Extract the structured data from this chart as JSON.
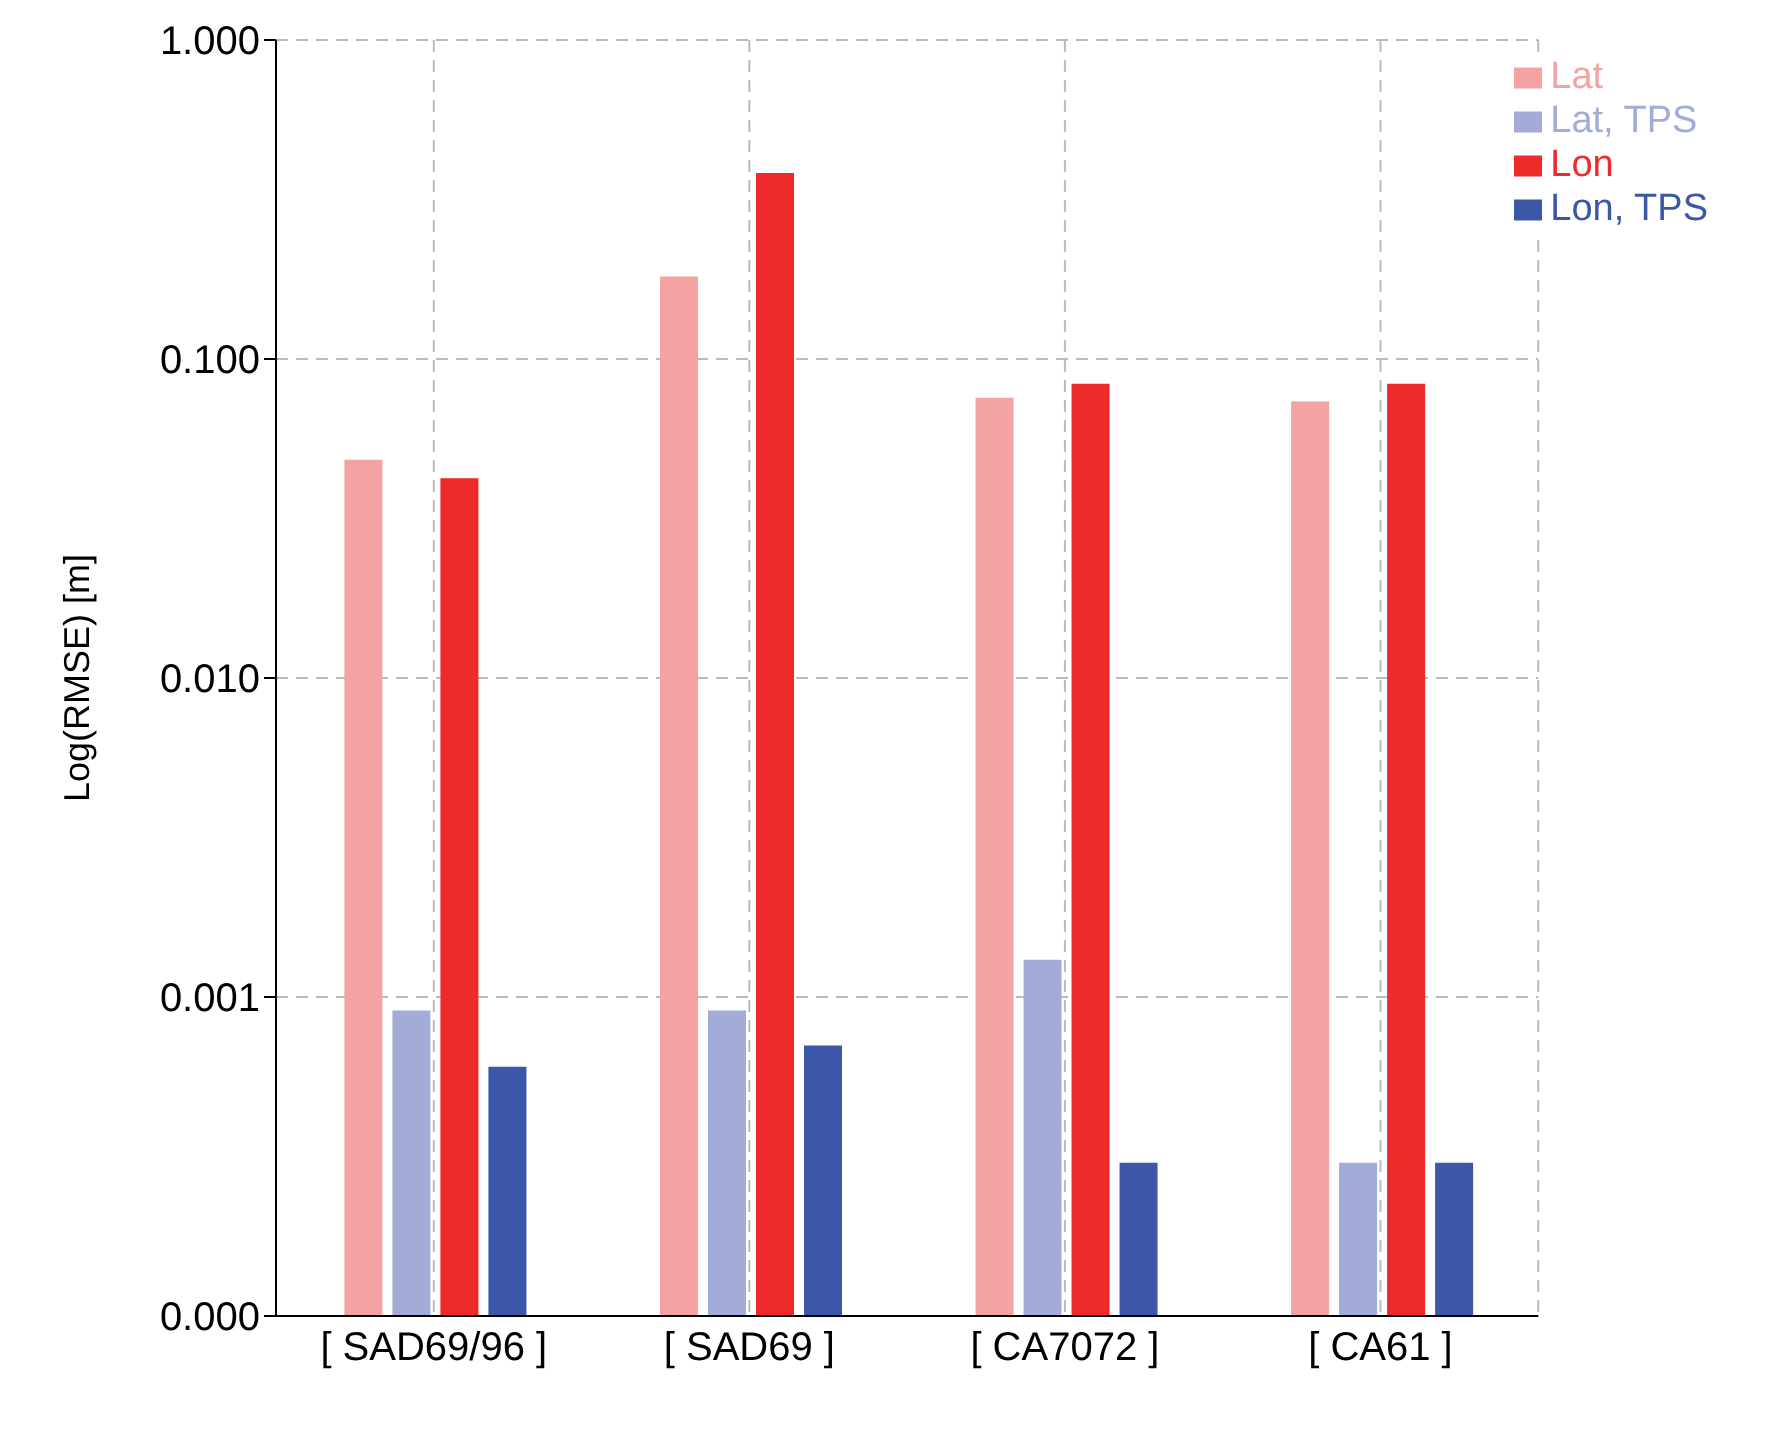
{
  "chart_data": {
    "type": "bar",
    "ylabel": "Log(RMSE) [m]",
    "categories": [
      "[ SAD69/96 ]",
      "[    SAD69  ]",
      "[  CA7072 ]",
      "[    CA61    ]"
    ],
    "series": [
      {
        "name": "Lat",
        "color": "#f4a3a3",
        "values": [
          0.048,
          0.18,
          0.075,
          0.073
        ]
      },
      {
        "name": "Lat, TPS",
        "color": "#a3acd8",
        "values": [
          0.0009,
          0.0009,
          0.0013,
          0.0003
        ]
      },
      {
        "name": "Lon",
        "color": "#ee2a2a",
        "values": [
          0.042,
          0.38,
          0.083,
          0.083
        ]
      },
      {
        "name": "Lon, TPS",
        "color": "#3c56a8",
        "values": [
          0.0006,
          0.0007,
          0.0003,
          0.0003
        ]
      }
    ],
    "log": "y",
    "ylim": [
      0.0001,
      1
    ],
    "yticks": [
      {
        "value": 0.0001,
        "label": "0.000"
      },
      {
        "value": 0.001,
        "label": "0.001"
      },
      {
        "value": 0.01,
        "label": "0.010"
      },
      {
        "value": 0.1,
        "label": "0.100"
      },
      {
        "value": 1,
        "label": "1.000"
      }
    ],
    "grid": true,
    "legend": "top right"
  }
}
